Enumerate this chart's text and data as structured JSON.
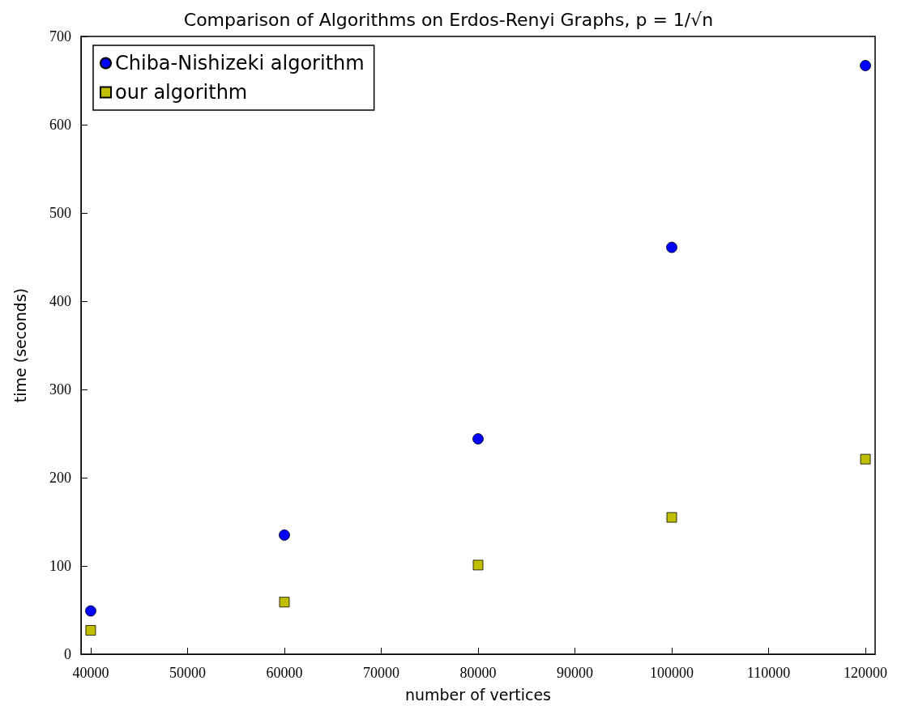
{
  "chart_data": {
    "type": "scatter",
    "title": "Comparison of Algorithms on Erdos-Renyi Graphs, p = 1/√n",
    "xlabel": "number of vertices",
    "ylabel": "time (seconds)",
    "x": [
      40000,
      60000,
      80000,
      100000,
      120000
    ],
    "series": [
      {
        "name": "Chiba-Nishizeki algorithm",
        "color": "#0000ff",
        "marker": "circle",
        "values": [
          49,
          135,
          244,
          461,
          667
        ]
      },
      {
        "name": "our algorithm",
        "color": "#bfbf00",
        "marker": "square",
        "values": [
          27,
          59,
          101,
          155,
          221
        ]
      }
    ],
    "xlim": [
      39000,
      121000
    ],
    "xticks": [
      40000,
      50000,
      60000,
      70000,
      80000,
      90000,
      100000,
      110000,
      120000
    ],
    "ylim": [
      0,
      700
    ],
    "yticks": [
      0,
      100,
      200,
      300,
      400,
      500,
      600,
      700
    ],
    "grid": false,
    "legend": "top left"
  }
}
